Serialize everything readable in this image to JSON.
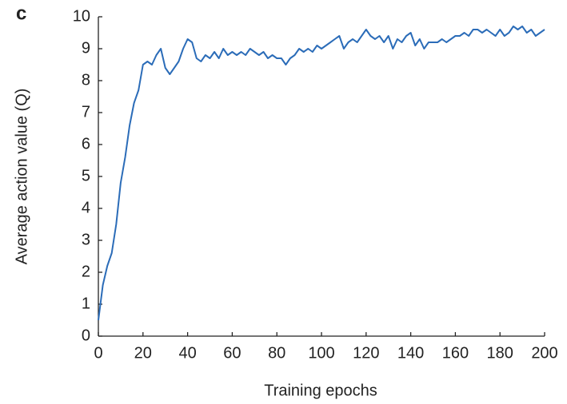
{
  "chart_data": {
    "type": "line",
    "panel_label": "c",
    "xlabel": "Training epochs",
    "ylabel": "Average action value (Q)",
    "x": [
      0,
      2,
      4,
      6,
      8,
      10,
      12,
      14,
      16,
      18,
      20,
      22,
      24,
      26,
      28,
      30,
      32,
      34,
      36,
      38,
      40,
      42,
      44,
      46,
      48,
      50,
      52,
      54,
      56,
      58,
      60,
      62,
      64,
      66,
      68,
      70,
      72,
      74,
      76,
      78,
      80,
      82,
      84,
      86,
      88,
      90,
      92,
      94,
      96,
      98,
      100,
      102,
      104,
      106,
      108,
      110,
      112,
      114,
      116,
      118,
      120,
      122,
      124,
      126,
      128,
      130,
      132,
      134,
      136,
      138,
      140,
      142,
      144,
      146,
      148,
      150,
      152,
      154,
      156,
      158,
      160,
      162,
      164,
      166,
      168,
      170,
      172,
      174,
      176,
      178,
      180,
      182,
      184,
      186,
      188,
      190,
      192,
      194,
      196,
      198,
      200
    ],
    "series": [
      {
        "color": "#2b6cb8",
        "values": [
          0.5,
          1.6,
          2.2,
          2.6,
          3.5,
          4.8,
          5.6,
          6.6,
          7.3,
          7.7,
          8.5,
          8.6,
          8.5,
          8.8,
          9.0,
          8.4,
          8.2,
          8.4,
          8.6,
          9.0,
          9.3,
          9.2,
          8.7,
          8.6,
          8.8,
          8.7,
          8.9,
          8.7,
          9.0,
          8.8,
          8.9,
          8.8,
          8.9,
          8.8,
          9.0,
          8.9,
          8.8,
          8.9,
          8.7,
          8.8,
          8.7,
          8.7,
          8.5,
          8.7,
          8.8,
          9.0,
          8.9,
          9.0,
          8.9,
          9.1,
          9.0,
          9.1,
          9.2,
          9.3,
          9.4,
          9.0,
          9.2,
          9.3,
          9.2,
          9.4,
          9.6,
          9.4,
          9.3,
          9.4,
          9.2,
          9.4,
          9.0,
          9.3,
          9.2,
          9.4,
          9.5,
          9.1,
          9.3,
          9.0,
          9.2,
          9.2,
          9.2,
          9.3,
          9.2,
          9.3,
          9.4,
          9.4,
          9.5,
          9.4,
          9.6,
          9.6,
          9.5,
          9.6,
          9.5,
          9.4,
          9.6,
          9.4,
          9.5,
          9.7,
          9.6,
          9.7,
          9.5,
          9.6,
          9.4,
          9.5,
          9.6
        ]
      }
    ],
    "xlim": [
      0,
      200
    ],
    "xticks": [
      0,
      20,
      40,
      60,
      80,
      100,
      120,
      140,
      160,
      180,
      200
    ],
    "ylim": [
      0,
      10
    ],
    "yticks": [
      0,
      1,
      2,
      3,
      4,
      5,
      6,
      7,
      8,
      9,
      10
    ]
  }
}
